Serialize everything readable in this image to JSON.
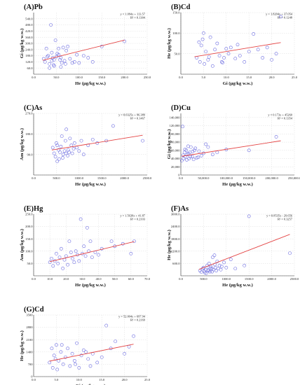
{
  "chart_data": [
    {
      "id": "A",
      "type": "scatter",
      "title": "(A)Pb",
      "xlabel": "He (μg/kg  w.w.)",
      "ylabel": "Gi (μg/kg  w.w.)",
      "xlim": [
        0,
        250
      ],
      "ylim": [
        0,
        600
      ],
      "xticks": [
        0,
        50,
        100,
        150,
        200,
        250
      ],
      "xtick_labels": [
        "0.0",
        "50.0",
        "100.0",
        "150.0",
        "200.0",
        "250.0"
      ],
      "yticks": [
        0,
        60,
        120,
        180,
        240,
        300,
        360,
        420,
        480,
        540
      ],
      "ytick_labels": [
        "",
        "60.0",
        "120.0",
        "180.0",
        "240.0",
        "300.0",
        "360.0",
        "420.0",
        "480.0",
        "540.0"
      ],
      "equation": "y = 1.094x + 113.57",
      "r2": "R² = 0.1304",
      "fit": {
        "slope": 1.094,
        "intercept": 113.57,
        "x_range": [
          20,
          200
        ]
      },
      "x": [
        22,
        25,
        28,
        30,
        32,
        35,
        38,
        40,
        42,
        44,
        45,
        48,
        50,
        52,
        55,
        58,
        60,
        62,
        65,
        68,
        70,
        72,
        75,
        80,
        85,
        90,
        95,
        100,
        110,
        120,
        130,
        150,
        200,
        35,
        45,
        55,
        40,
        60
      ],
      "y": [
        150,
        120,
        250,
        170,
        180,
        100,
        480,
        210,
        160,
        90,
        140,
        330,
        170,
        200,
        250,
        140,
        70,
        110,
        260,
        130,
        100,
        230,
        270,
        150,
        110,
        120,
        190,
        110,
        180,
        160,
        120,
        270,
        320,
        60,
        80,
        190,
        130,
        160
      ]
    },
    {
      "id": "B",
      "type": "scatter",
      "title": "(B)Cd",
      "xlabel": "Gi (μg/kg  w.w.)",
      "ylabel": "He (μg/kg  w.w.)",
      "xlim": [
        0,
        25
      ],
      "ylim": [
        0,
        150
      ],
      "xticks": [
        0,
        5,
        10,
        15,
        20,
        25
      ],
      "xtick_labels": [
        "0.0",
        "5.0",
        "10.0",
        "15.0",
        "20.0",
        "25.0"
      ],
      "yticks": [
        0,
        50,
        100,
        150
      ],
      "ytick_labels": [
        "",
        "50.0",
        "100.0",
        "150.0"
      ],
      "equation": "y = 1.8204x + 37.054",
      "r2": "R² = 0.1248",
      "fit": {
        "slope": 1.8204,
        "intercept": 37.054,
        "x_range": [
          3,
          22
        ]
      },
      "x": [
        3.5,
        4.0,
        4.2,
        4.5,
        5.0,
        5.2,
        5.5,
        6.0,
        6.5,
        7.0,
        7.5,
        8.0,
        8.5,
        9.0,
        9.5,
        10.0,
        10.5,
        11.0,
        12.0,
        12.5,
        13.0,
        14.0,
        15.0,
        16.0,
        17.0,
        18.0,
        19.0,
        20.0,
        21.0,
        22.0,
        4.8,
        6.2,
        9.2
      ],
      "y": [
        40,
        78,
        30,
        70,
        100,
        25,
        55,
        35,
        90,
        20,
        60,
        75,
        45,
        30,
        40,
        62,
        50,
        65,
        38,
        72,
        45,
        30,
        55,
        98,
        60,
        40,
        65,
        35,
        50,
        140,
        85,
        42,
        28
      ]
    },
    {
      "id": "C",
      "type": "scatter",
      "title": "(C)As",
      "xlabel": "He (μg/kg  w.w.)",
      "ylabel": "Am (μg/kg  w.w.)",
      "xlim": [
        0,
        2500
      ],
      "ylim": [
        0,
        270
      ],
      "xticks": [
        0,
        500,
        1000,
        1500,
        2000,
        2500
      ],
      "xtick_labels": [
        "0.0",
        "500.0",
        "1000.0",
        "1500.0",
        "2000.0",
        "2500.0"
      ],
      "yticks": [
        0,
        90,
        180,
        270
      ],
      "ytick_labels": [
        "",
        "90.0",
        "180.0",
        "270.0"
      ],
      "equation": "y = 0.0325x + 96.389",
      "r2": "R² = 0.1467",
      "fit": {
        "slope": 0.0325,
        "intercept": 96.389,
        "x_range": [
          400,
          2400
        ]
      },
      "x": [
        420,
        450,
        480,
        500,
        520,
        550,
        580,
        600,
        620,
        650,
        680,
        700,
        720,
        750,
        780,
        800,
        830,
        850,
        880,
        900,
        950,
        1000,
        1050,
        1100,
        1200,
        1300,
        1400,
        1600,
        1750,
        2400,
        560,
        640,
        710,
        760,
        520
      ],
      "y": [
        120,
        95,
        80,
        140,
        60,
        110,
        100,
        125,
        170,
        90,
        105,
        150,
        200,
        85,
        100,
        160,
        130,
        95,
        115,
        140,
        120,
        105,
        150,
        90,
        130,
        155,
        140,
        150,
        215,
        150,
        70,
        75,
        95,
        110,
        130
      ]
    },
    {
      "id": "D",
      "type": "scatter",
      "title": "(D)Cu",
      "xlabel": "He (μg/kg  w.w.)",
      "ylabel": "Gi (μg/kg  w.w.)",
      "xlim": [
        0,
        250000
      ],
      "ylim": [
        0,
        150000
      ],
      "xticks": [
        0,
        50000,
        100000,
        150000,
        200000,
        250000
      ],
      "xtick_labels": [
        "0.0",
        "50,000.0",
        "100,000.0",
        "150,000.0",
        "200,000.0",
        "250,000.0"
      ],
      "yticks": [
        0,
        20000,
        40000,
        60000,
        80000,
        100000,
        120000,
        140000
      ],
      "ytick_labels": [
        "0",
        "20,000",
        "40,000",
        "60,000",
        "80,000",
        "100,000",
        "120,000",
        "140,000"
      ],
      "equation": "y = 0.173x + 45260",
      "r2": "R² = 0.1354",
      "fit": {
        "slope": 0.173,
        "intercept": 45260,
        "x_range": [
          2000,
          220000
        ]
      },
      "x": [
        2000,
        4000,
        6000,
        8000,
        10000,
        12000,
        14000,
        16000,
        18000,
        20000,
        22000,
        25000,
        28000,
        30000,
        35000,
        40000,
        45000,
        50000,
        55000,
        60000,
        70000,
        80000,
        100000,
        150000,
        210000,
        5000,
        9000,
        13000,
        17000,
        21000,
        26000,
        32000,
        38000
      ],
      "y": [
        35000,
        118000,
        40000,
        55000,
        45000,
        60000,
        50000,
        70000,
        40000,
        55000,
        68000,
        45000,
        38000,
        60000,
        42000,
        58000,
        47000,
        53000,
        75000,
        68000,
        50000,
        55000,
        62000,
        60000,
        93000,
        48000,
        62000,
        37000,
        52000,
        45000,
        57000,
        65000,
        43000
      ]
    },
    {
      "id": "E",
      "type": "scatter",
      "title": "(E)Hg",
      "xlabel": "He (μg/kg  w.w.)",
      "ylabel": "Am (μg/kg  w.w.)",
      "xlim": [
        0,
        70
      ],
      "ylim": [
        0,
        250
      ],
      "xticks": [
        0,
        10,
        20,
        30,
        40,
        50,
        60,
        70
      ],
      "xtick_labels": [
        "0.0",
        "10.0",
        "20.0",
        "30.0",
        "40.0",
        "50.0",
        "60.0",
        "70.0"
      ],
      "yticks": [
        0,
        50,
        100,
        150,
        200,
        250
      ],
      "ytick_labels": [
        "",
        "50.0",
        "100.0",
        "150.0",
        "200.0",
        "250.0"
      ],
      "equation": "y = 1.5639x + 41.87",
      "r2": "R² = 0.2103",
      "fit": {
        "slope": 1.5639,
        "intercept": 41.87,
        "x_range": [
          10,
          62
        ]
      },
      "x": [
        10,
        11,
        12,
        13,
        14,
        15,
        16,
        17,
        18,
        19,
        20,
        21,
        22,
        23,
        24,
        25,
        26,
        27,
        28,
        29,
        30,
        31,
        32,
        33,
        34,
        35,
        36,
        38,
        40,
        42,
        48,
        50,
        55,
        60,
        62
      ],
      "y": [
        55,
        70,
        40,
        60,
        90,
        50,
        75,
        110,
        30,
        65,
        80,
        45,
        140,
        95,
        70,
        55,
        100,
        85,
        60,
        230,
        90,
        120,
        80,
        195,
        100,
        140,
        75,
        95,
        85,
        110,
        140,
        120,
        130,
        90,
        140
      ]
    },
    {
      "id": "F",
      "type": "scatter",
      "title": "(F)As",
      "xlabel": "He (μg/kg  w.w.)",
      "ylabel": "He (μg/kg  w.w.)",
      "xlim": [
        0,
        2500
      ],
      "ylim": [
        0,
        3000
      ],
      "xticks": [
        0,
        500,
        1000,
        1500,
        2000,
        2500
      ],
      "xtick_labels": [
        "0.0",
        "500.0",
        "1000.0",
        "1500.0",
        "2000.0",
        "2500.0"
      ],
      "yticks": [
        0,
        600,
        1200,
        1800,
        2400,
        3000
      ],
      "ytick_labels": [
        "",
        "600.0",
        "1200.0",
        "1800.0",
        "2400.0",
        "3000.0"
      ],
      "equation": "y = 0.8535x - 29.656",
      "r2": "R² = 0.3257",
      "fit": {
        "slope": 0.8535,
        "intercept": -29.656,
        "x_range": [
          400,
          2400
        ]
      },
      "x": [
        420,
        450,
        480,
        500,
        520,
        550,
        580,
        600,
        620,
        640,
        660,
        680,
        700,
        720,
        740,
        760,
        780,
        800,
        820,
        850,
        880,
        900,
        950,
        1000,
        1100,
        1200,
        1400,
        1500,
        2400,
        530,
        610,
        690,
        750,
        560,
        650
      ],
      "y": [
        250,
        180,
        350,
        400,
        220,
        300,
        500,
        280,
        600,
        200,
        450,
        350,
        900,
        300,
        1000,
        400,
        250,
        700,
        350,
        500,
        300,
        450,
        650,
        400,
        800,
        350,
        500,
        2900,
        1100,
        150,
        250,
        200,
        550,
        120,
        380
      ]
    },
    {
      "id": "G",
      "type": "scatter",
      "title": "(G)Cd",
      "xlabel": "Gi (μg/kg  w.w.)",
      "ylabel": "He (μg/kg  w.w.)",
      "xlim": [
        0,
        25
      ],
      "ylim": [
        0,
        3500
      ],
      "xticks": [
        0,
        5,
        10,
        15,
        20,
        25
      ],
      "xtick_labels": [
        "0.0",
        "5.0",
        "10.0",
        "15.0",
        "20.0",
        "25.0"
      ],
      "yticks": [
        0,
        700,
        1400,
        2100,
        2800,
        3500
      ],
      "ytick_labels": [
        "0",
        "700",
        "1400",
        "2100",
        "2800",
        "3500"
      ],
      "equation": "y = 52.004x + 697.94",
      "r2": "R² = 0.2169",
      "fit": {
        "slope": 52.004,
        "intercept": 697.94,
        "x_range": [
          3.5,
          22
        ]
      },
      "x": [
        3.5,
        4.0,
        4.2,
        4.5,
        5.0,
        5.2,
        5.5,
        6.0,
        6.5,
        7.0,
        7.5,
        8.0,
        8.5,
        9.0,
        9.5,
        10.0,
        10.5,
        11.0,
        12.0,
        12.5,
        13.0,
        14.0,
        15.0,
        16.0,
        17.0,
        18.0,
        20.0,
        21.0,
        22.0,
        4.8,
        6.2,
        9.2,
        11.5
      ],
      "y": [
        800,
        1600,
        500,
        1200,
        1800,
        400,
        900,
        1400,
        700,
        1100,
        1600,
        600,
        1300,
        900,
        1900,
        500,
        1200,
        1500,
        1000,
        600,
        1300,
        800,
        1100,
        2900,
        1600,
        2000,
        1300,
        1700,
        2300,
        1000,
        1800,
        700,
        1400
      ]
    }
  ]
}
